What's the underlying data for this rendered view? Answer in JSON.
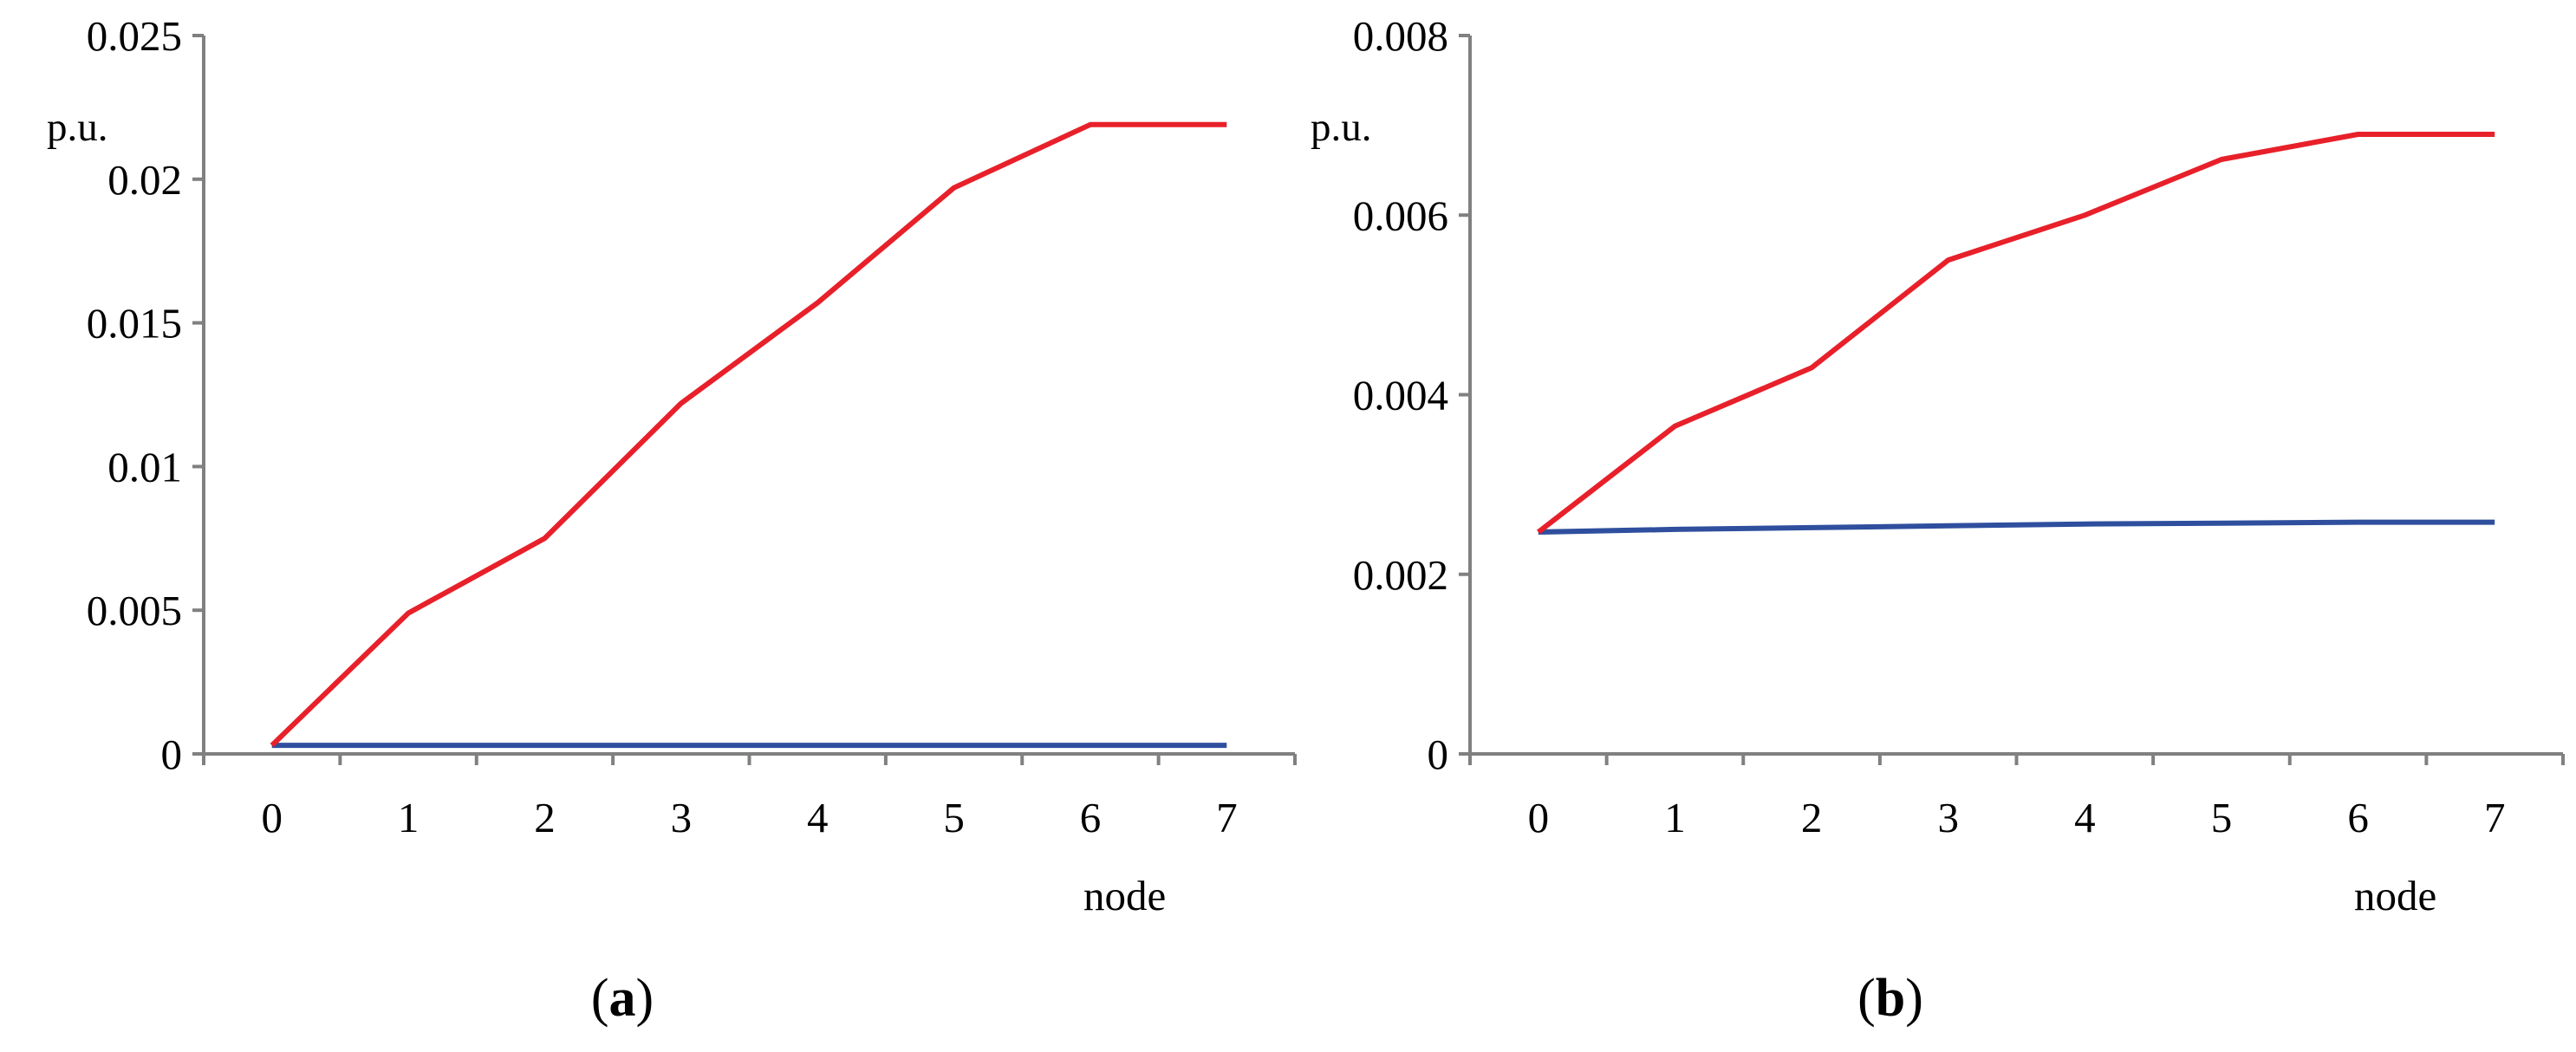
{
  "chart_data": [
    {
      "type": "line",
      "panel_label": "a",
      "y_unit": "p.u.",
      "xlabel": "node",
      "ylabel": "",
      "x": [
        0,
        1,
        2,
        3,
        4,
        5,
        6,
        7
      ],
      "xlim": [
        -0.5,
        7.5
      ],
      "ylim": [
        0,
        0.025
      ],
      "y_ticks": [
        "0",
        "0.005",
        "0.01",
        "0.015",
        "0.02",
        "0.025"
      ],
      "y_tick_values": [
        0,
        0.005,
        0.01,
        0.015,
        0.02,
        0.025
      ],
      "x_ticks": [
        "0",
        "1",
        "2",
        "3",
        "4",
        "5",
        "6",
        "7"
      ],
      "grid": false,
      "legend": "none",
      "series": [
        {
          "color": "#e8202a",
          "values": [
            0.0003,
            0.0049,
            0.0075,
            0.0122,
            0.0157,
            0.0197,
            0.0219,
            0.0219
          ]
        },
        {
          "color": "#2f4f9e",
          "values": [
            0.0003,
            0.0003,
            0.0003,
            0.0003,
            0.0003,
            0.0003,
            0.0003,
            0.0003
          ]
        }
      ]
    },
    {
      "type": "line",
      "panel_label": "b",
      "y_unit": "p.u.",
      "xlabel": "node",
      "ylabel": "",
      "x": [
        0,
        1,
        2,
        3,
        4,
        5,
        6,
        7
      ],
      "xlim": [
        -0.5,
        7.5
      ],
      "ylim": [
        0,
        0.008
      ],
      "y_ticks": [
        "0",
        "0.002",
        "0.004",
        "0.006",
        "0.008"
      ],
      "y_tick_values": [
        0,
        0.002,
        0.004,
        0.006,
        0.008
      ],
      "x_ticks": [
        "0",
        "1",
        "2",
        "3",
        "4",
        "5",
        "6",
        "7"
      ],
      "grid": false,
      "legend": "none",
      "series": [
        {
          "color": "#e8202a",
          "values": [
            0.00247,
            0.00365,
            0.0043,
            0.0055,
            0.006,
            0.00662,
            0.0069,
            0.0069
          ]
        },
        {
          "color": "#2f4f9e",
          "values": [
            0.00247,
            0.0025,
            0.00252,
            0.00254,
            0.00256,
            0.00257,
            0.00258,
            0.00258
          ]
        }
      ]
    }
  ]
}
